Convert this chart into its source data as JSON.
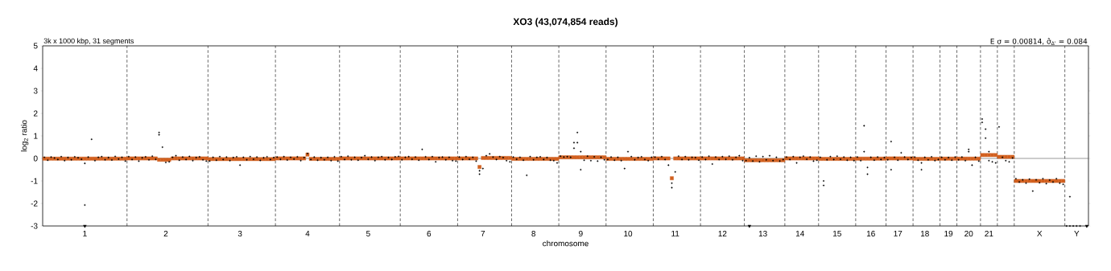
{
  "chart_data": {
    "type": "scatter",
    "title": "XO3 (43,074,854 reads)",
    "xlabel": "chromosome",
    "ylabel": "log$_{2}$ ratio",
    "annotations": [
      "3k x 1000 kbp, 31 segments",
      "E σ = 0.00814, σ̂$_{Δ'}$ = 0.084"
    ],
    "ylim": [
      -3,
      5
    ],
    "yticks": [
      -3,
      -2,
      -1,
      0,
      1,
      2,
      3,
      4,
      5
    ],
    "categories": [
      null,
      null,
      null,
      null,
      null,
      null,
      null,
      null,
      null,
      null,
      null,
      null,
      "1",
      null,
      null,
      null,
      null,
      null,
      null,
      null,
      null,
      null,
      null,
      null,
      null,
      null,
      null,
      null,
      null,
      null,
      null,
      null,
      null,
      null,
      null,
      null,
      "2",
      null,
      null,
      null,
      null,
      null,
      null,
      null,
      null,
      null,
      null,
      null,
      null,
      null,
      null,
      null,
      null,
      null,
      null,
      null,
      null,
      null,
      "3",
      null,
      null,
      null,
      null,
      null,
      null,
      null,
      null,
      null,
      null,
      null,
      null,
      null,
      null,
      null,
      null,
      null,
      null,
      null,
      "4",
      null,
      null,
      null,
      null,
      null,
      null,
      null,
      null,
      null,
      null,
      null,
      null,
      null,
      null,
      null,
      null,
      null,
      "5",
      null,
      null,
      null,
      null,
      null,
      null,
      null,
      null,
      null,
      null,
      null,
      null,
      null,
      null,
      null,
      null,
      null,
      "6",
      null,
      null,
      null,
      null,
      null,
      null,
      null,
      null,
      null,
      null,
      null,
      null,
      null,
      null,
      null,
      "7",
      null,
      null,
      null,
      null,
      null,
      null,
      null,
      null,
      null,
      null,
      null,
      null,
      null,
      null,
      "8",
      null,
      null,
      null,
      null,
      null,
      null,
      null,
      null,
      null,
      null,
      null,
      null,
      null,
      "9",
      null,
      null,
      null,
      null,
      null,
      null,
      null,
      null,
      null,
      null,
      null,
      null,
      null,
      "10",
      null,
      null,
      null,
      null,
      null,
      null,
      null,
      null,
      null,
      null,
      null,
      null,
      null,
      "11",
      null,
      null,
      null,
      null,
      null,
      null,
      null,
      null,
      null,
      null,
      null,
      null,
      null,
      "12",
      null,
      null,
      null,
      null,
      null,
      null,
      null,
      null,
      null,
      null,
      null,
      "13",
      null,
      null,
      null,
      null,
      null,
      null,
      null,
      null,
      null,
      null,
      "14",
      null,
      null,
      null,
      null,
      null,
      null,
      null,
      null,
      null,
      null,
      "15",
      null,
      null,
      null,
      null,
      null,
      null,
      null,
      null,
      null,
      "16",
      null,
      null,
      null,
      null,
      null,
      null,
      null,
      "17",
      null,
      null,
      null,
      null,
      null,
      null,
      null,
      "18",
      null,
      null,
      null,
      null,
      null,
      null,
      "19",
      null,
      null,
      null,
      null,
      null,
      "20",
      null,
      null,
      null,
      null,
      null,
      "21",
      null,
      null,
      null,
      null,
      null,
      null,
      null,
      null,
      null,
      null,
      null,
      null,
      null,
      null,
      "X",
      null,
      null,
      null,
      null,
      null,
      null,
      null,
      null,
      null,
      null,
      "Y",
      null,
      null,
      null
    ],
    "ref_lines": [
      {
        "axis": "y",
        "value": 0,
        "color": "#555555",
        "line_style": "solid"
      }
    ],
    "series": [
      {
        "marker": "circle",
        "color": "#000000",
        "values": [
          0.05,
          -0.08,
          0.06,
          0.02,
          -0.05,
          0.08,
          -0.1,
          0.04,
          -0.06,
          0.07,
          0.03,
          -0.04,
          -2.07,
          0.06,
          0.85,
          -0.1,
          0.05,
          0.08,
          -0.06,
          0.04,
          -0.07,
          0.09,
          -0.03,
          0.05,
          -0.12,
          0.08,
          -0.05,
          0.06,
          -0.12,
          0.03,
          0.07,
          -0.06,
          0.1,
          -0.04,
          1.15,
          0.5,
          -0.18,
          -0.15,
          0.05,
          0.12,
          -0.08,
          0.06,
          -0.05,
          0.09,
          -0.1,
          0.04,
          0.07,
          -0.06,
          -0.12,
          -0.12,
          0.05,
          -0.08,
          0.08,
          -0.05,
          0.06,
          -0.1,
          0.04,
          0.07,
          -0.3,
          0.05,
          -0.06,
          0.08,
          -0.04,
          0.06,
          -0.09,
          0.03,
          0.07,
          -0.05,
          0.04,
          0.06,
          -0.04,
          0.08,
          -0.07,
          0.05,
          -0.03,
          0.07,
          -0.1,
          0.04,
          0.22,
          -0.05,
          0.06,
          -0.08,
          0.04,
          -0.06,
          0.05,
          -0.1,
          0.07,
          -0.12,
          0.08,
          -0.05,
          0.1,
          -0.06,
          0.05,
          -0.08,
          0.04,
          0.12,
          -0.04,
          0.06,
          -0.1,
          0.05,
          0.08,
          -0.06,
          0.04,
          -0.05,
          0.07,
          0.09,
          -0.06,
          0.05,
          0.08,
          -0.04,
          0.06,
          -0.08,
          0.4,
          0.07,
          -0.05,
          0.08,
          -0.15,
          0.04,
          0.06,
          -0.06,
          0.05,
          -0.1,
          -0.12,
          0.06,
          -0.05,
          0.08,
          -0.04,
          0.05,
          -0.12,
          -0.7,
          -0.45,
          0.12,
          0.2,
          0.06,
          -0.05,
          0.08,
          0.04,
          -0.1,
          -0.15,
          0.06,
          -0.04,
          0.05,
          -0.08,
          -0.75,
          0.08,
          -0.06,
          0.05,
          0.07,
          -0.05,
          0.04,
          -0.08,
          -0.1,
          -0.2,
          0.1,
          0.06,
          0.08,
          0.05,
          0.7,
          1.15,
          0.3,
          -0.08,
          0.1,
          -0.1,
          0.07,
          -0.12,
          0.05,
          -0.06,
          -0.05,
          0.06,
          -0.08,
          0.05,
          -0.1,
          -0.45,
          0.3,
          0.08,
          -0.06,
          0.04,
          0.07,
          -0.05,
          -0.1,
          0.05,
          0.06,
          -0.04,
          0.08,
          -0.05,
          -0.3,
          -1.3,
          -0.6,
          0.1,
          -0.05,
          0.08,
          -0.06,
          0.05,
          0.04,
          -0.08,
          0.06,
          -0.05,
          0.1,
          -0.25,
          0.06,
          -0.05,
          0.08,
          -0.04,
          0.1,
          -0.06,
          0.05,
          0.12,
          -0.1,
          -0.1,
          0.03,
          -0.12,
          0.1,
          -0.15,
          0.08,
          -0.06,
          0.12,
          -0.1,
          0.05,
          -0.12,
          -0.05,
          0.06,
          -0.05,
          0.08,
          -0.2,
          0.05,
          0.1,
          -0.04,
          0.06,
          -0.12,
          -0.08,
          0.05,
          -1.0,
          -0.06,
          0.08,
          -0.05,
          0.1,
          -0.04,
          0.06,
          -0.08,
          0.05,
          -0.1,
          0.06,
          -0.1,
          1.45,
          -0.4,
          0.05,
          -0.08,
          0.06,
          -0.05,
          0.04,
          -0.06,
          0.75,
          0.05,
          -0.08,
          0.25,
          0.06,
          -0.05,
          0.04,
          0.06,
          -0.08,
          -0.5,
          0.05,
          -0.06,
          0.07,
          -0.1,
          -0.05,
          0.05,
          -0.06,
          0.04,
          -0.08,
          0.06,
          -0.06,
          0.06,
          -0.1,
          0.4,
          -0.3,
          0.05,
          -0.12,
          1.75,
          1.3,
          -0.1,
          -0.15,
          -0.2,
          1.4,
          0.05,
          -0.1,
          -0.15,
          0.02,
          -0.9,
          -1.05,
          -0.95,
          -1.1,
          -0.92,
          -1.45,
          -0.95,
          -1.08,
          -0.9,
          -1.12,
          -0.96,
          -1.05,
          -0.9,
          -1.1,
          -1.15,
          -3,
          -3,
          -3,
          -3,
          -3,
          null,
          null
        ]
      },
      {
        "marker": "circle",
        "color": "#000000",
        "values": [
          null,
          null,
          null,
          null,
          null,
          null,
          null,
          null,
          null,
          null,
          null,
          null,
          -0.22,
          null,
          null,
          null,
          null,
          null,
          null,
          null,
          null,
          null,
          null,
          null,
          null,
          null,
          null,
          null,
          null,
          null,
          null,
          null,
          null,
          null,
          1.05,
          null,
          null,
          null,
          null,
          null,
          null,
          null,
          null,
          null,
          null,
          null,
          null,
          null,
          null,
          null,
          null,
          null,
          null,
          null,
          null,
          null,
          null,
          null,
          null,
          null,
          null,
          null,
          null,
          null,
          null,
          null,
          null,
          null,
          null,
          null,
          null,
          null,
          null,
          null,
          null,
          null,
          null,
          null,
          null,
          null,
          null,
          null,
          null,
          null,
          null,
          null,
          null,
          null,
          null,
          null,
          null,
          null,
          null,
          null,
          null,
          null,
          null,
          null,
          null,
          null,
          null,
          null,
          null,
          null,
          null,
          null,
          null,
          null,
          null,
          null,
          null,
          null,
          null,
          null,
          null,
          null,
          null,
          null,
          null,
          null,
          null,
          null,
          null,
          null,
          null,
          null,
          null,
          null,
          null,
          -0.55,
          null,
          null,
          null,
          null,
          null,
          null,
          null,
          null,
          null,
          null,
          null,
          null,
          null,
          null,
          null,
          null,
          null,
          null,
          null,
          null,
          null,
          null,
          null,
          null,
          null,
          null,
          null,
          0.45,
          0.7,
          -0.5,
          null,
          null,
          null,
          null,
          null,
          null,
          null,
          null,
          null,
          null,
          null,
          null,
          null,
          null,
          null,
          null,
          null,
          null,
          null,
          null,
          null,
          null,
          null,
          null,
          null,
          null,
          -1.1,
          null,
          null,
          null,
          null,
          null,
          null,
          null,
          null,
          null,
          null,
          null,
          null,
          null,
          null,
          null,
          null,
          null,
          null,
          null,
          null,
          null,
          null,
          null,
          null,
          null,
          null,
          null,
          null,
          null,
          null,
          null,
          null,
          null,
          null,
          null,
          null,
          null,
          null,
          null,
          null,
          null,
          null,
          null,
          null,
          -1.2,
          null,
          null,
          null,
          null,
          null,
          null,
          null,
          null,
          null,
          null,
          null,
          0.3,
          -0.7,
          null,
          null,
          null,
          null,
          null,
          null,
          -0.5,
          null,
          null,
          null,
          null,
          null,
          null,
          null,
          null,
          -0.2,
          null,
          null,
          null,
          null,
          null,
          null,
          null,
          null,
          null,
          null,
          null,
          null,
          null,
          0.3,
          null,
          null,
          null,
          1.6,
          0.9,
          0.3,
          null,
          null,
          null,
          null,
          null,
          null,
          null,
          null,
          null,
          null,
          null,
          null,
          null,
          null,
          null,
          null,
          null,
          null,
          null,
          null,
          null,
          null,
          null,
          -1.7,
          null,
          null,
          null,
          null,
          null
        ]
      },
      {
        "marker": "square",
        "color": "#d2601f",
        "values": [
          -0.01,
          -0.01,
          -0.01,
          -0.01,
          -0.01,
          -0.01,
          -0.01,
          -0.01,
          -0.01,
          -0.01,
          -0.01,
          -0.01,
          -0.01,
          -0.01,
          -0.01,
          -0.01,
          -0.01,
          -0.01,
          -0.01,
          -0.01,
          -0.01,
          -0.01,
          -0.01,
          -0.01,
          -0.01,
          0,
          0,
          0,
          0,
          0,
          0,
          0,
          0,
          0,
          -0.06,
          -0.06,
          -0.06,
          -0.06,
          0,
          0,
          0,
          0,
          0,
          0,
          0,
          0,
          0,
          0,
          0,
          -0.03,
          -0.03,
          -0.03,
          -0.03,
          -0.03,
          -0.03,
          -0.03,
          -0.03,
          -0.03,
          -0.03,
          -0.03,
          -0.03,
          -0.03,
          -0.03,
          -0.03,
          -0.03,
          -0.03,
          -0.03,
          -0.03,
          -0.03,
          0,
          0,
          0,
          0,
          0,
          0,
          0,
          0,
          0,
          0.17,
          -0.02,
          -0.02,
          -0.02,
          -0.02,
          -0.02,
          -0.02,
          -0.02,
          -0.02,
          -0.02,
          0,
          0,
          0,
          0,
          0,
          0,
          0,
          0,
          0,
          0,
          0,
          0,
          0,
          0,
          0,
          0,
          0,
          0,
          0,
          0,
          0,
          0,
          0,
          0,
          0,
          0,
          0,
          0,
          0,
          0,
          0,
          0,
          0,
          0,
          0,
          0,
          0,
          0,
          0,
          0,
          0,
          -0.38,
          0.02,
          0.02,
          0.02,
          0.02,
          0.02,
          0.02,
          0.02,
          0.02,
          0.02,
          -0.02,
          -0.02,
          -0.02,
          -0.02,
          -0.02,
          -0.02,
          -0.02,
          -0.02,
          -0.02,
          -0.02,
          -0.02,
          -0.02,
          -0.02,
          -0.02,
          0.05,
          0.05,
          0.05,
          0.05,
          0.05,
          0.05,
          0.05,
          0.05,
          0.05,
          0.05,
          0.05,
          0.05,
          0.05,
          0.05,
          -0.02,
          -0.02,
          -0.02,
          -0.02,
          -0.02,
          -0.02,
          -0.02,
          -0.02,
          -0.02,
          -0.02,
          -0.02,
          -0.02,
          -0.02,
          -0.02,
          0,
          0,
          0,
          0,
          0,
          -0.88,
          0,
          0,
          0,
          0,
          0,
          0,
          0,
          0,
          0,
          0,
          0,
          0,
          0,
          0,
          0,
          0,
          0,
          0,
          0,
          0,
          0,
          -0.08,
          -0.08,
          -0.08,
          -0.08,
          -0.08,
          -0.08,
          -0.08,
          -0.08,
          -0.08,
          -0.08,
          -0.08,
          -0.08,
          0,
          0,
          0,
          0,
          0,
          0,
          0,
          0,
          0,
          0,
          -0.02,
          -0.02,
          -0.02,
          -0.02,
          -0.02,
          -0.02,
          -0.02,
          -0.02,
          -0.02,
          -0.02,
          -0.02,
          -0.01,
          -0.01,
          -0.01,
          -0.01,
          -0.01,
          -0.01,
          -0.01,
          -0.01,
          -0.01,
          0,
          0,
          0,
          0,
          0,
          0,
          0,
          0,
          -0.02,
          -0.02,
          -0.02,
          -0.02,
          -0.02,
          -0.02,
          -0.02,
          -0.02,
          -0.01,
          -0.01,
          -0.01,
          -0.01,
          -0.01,
          -0.01,
          -0.01,
          -0.01,
          -0.01,
          -0.01,
          -0.01,
          -0.01,
          0.15,
          0.15,
          0.15,
          0.15,
          0.15,
          0.07,
          0.07,
          0.07,
          0.07,
          0.07,
          -1.0,
          -1.0,
          -1.0,
          -1.0,
          -1.0,
          -1.0,
          -1.0,
          -1.0,
          -1.0,
          -1.0,
          -1.0,
          -1.0,
          -1.0,
          -1.0,
          -1.0,
          null,
          null,
          null,
          null,
          null,
          null,
          null
        ]
      },
      {
        "marker": "triangle",
        "color": "#000000",
        "values": [
          null,
          null,
          null,
          null,
          null,
          null,
          null,
          null,
          null,
          null,
          null,
          null,
          -3,
          null,
          null,
          null,
          null,
          null,
          null,
          null,
          null,
          null,
          null,
          null,
          null,
          null,
          null,
          null,
          null,
          null,
          null,
          null,
          null,
          null,
          null,
          null,
          null,
          null,
          null,
          null,
          null,
          null,
          null,
          null,
          null,
          null,
          null,
          null,
          null,
          null,
          null,
          null,
          null,
          null,
          null,
          null,
          null,
          null,
          null,
          null,
          null,
          null,
          null,
          null,
          null,
          null,
          null,
          null,
          null,
          null,
          null,
          null,
          null,
          null,
          null,
          null,
          null,
          null,
          null,
          null,
          null,
          null,
          null,
          null,
          null,
          null,
          null,
          null,
          null,
          null,
          null,
          null,
          null,
          null,
          null,
          null,
          null,
          null,
          null,
          null,
          null,
          null,
          null,
          null,
          null,
          null,
          null,
          null,
          null,
          null,
          null,
          null,
          null,
          null,
          null,
          null,
          null,
          null,
          null,
          null,
          null,
          null,
          null,
          null,
          null,
          null,
          null,
          null,
          null,
          null,
          null,
          null,
          null,
          null,
          null,
          null,
          null,
          null,
          null,
          null,
          null,
          null,
          null,
          null,
          null,
          null,
          null,
          null,
          null,
          null,
          null,
          null,
          null,
          null,
          null,
          null,
          null,
          null,
          null,
          null,
          null,
          null,
          null,
          null,
          null,
          null,
          null,
          null,
          null,
          null,
          null,
          null,
          null,
          null,
          null,
          null,
          null,
          null,
          null,
          null,
          null,
          null,
          null,
          null,
          null,
          null,
          null,
          null,
          null,
          null,
          null,
          null,
          null,
          null,
          null,
          null,
          null,
          null,
          null,
          null,
          null,
          null,
          null,
          null,
          null,
          null,
          null,
          null,
          null,
          -3,
          null,
          null,
          null,
          null,
          null,
          null,
          null,
          null,
          null,
          null,
          null,
          null,
          null,
          null,
          null,
          null,
          null,
          null,
          null,
          null,
          null,
          null,
          null,
          null,
          null,
          null,
          null,
          null,
          null,
          null,
          null,
          null,
          null,
          null,
          null,
          null,
          null,
          null,
          null,
          null,
          null,
          null,
          null,
          null,
          null,
          null,
          null,
          null,
          null,
          null,
          null,
          null,
          null,
          null,
          null,
          null,
          null,
          null,
          null,
          null,
          null,
          null,
          null,
          null,
          null,
          null,
          null,
          null,
          null,
          null,
          null,
          null,
          null,
          null,
          null,
          null,
          null,
          null,
          null,
          null,
          null,
          null,
          null,
          null,
          null,
          null,
          null,
          null,
          null,
          null,
          null,
          null,
          null,
          null,
          null,
          null,
          null,
          null,
          null,
          -3
        ]
      }
    ]
  }
}
